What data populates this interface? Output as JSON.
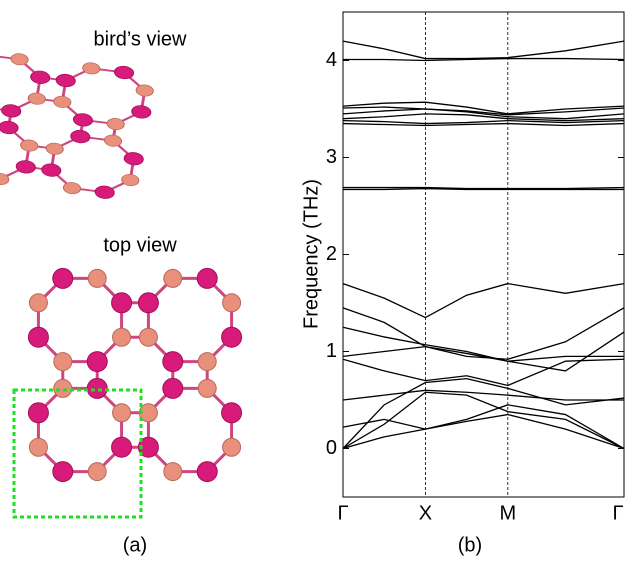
{
  "structure": {
    "bird_view_label": "bird’s view",
    "top_view_label": "top view",
    "caption": "(a)"
  },
  "chart_data": {
    "type": "line",
    "ylabel": "Frequency (THz)",
    "caption": "(b)",
    "x": [
      0,
      0.5,
      1,
      1.5,
      2,
      2.7,
      3.41
    ],
    "xlim": [
      0,
      3.41
    ],
    "xticks": [
      {
        "value": 0,
        "label": "Γ"
      },
      {
        "value": 1,
        "label": "X"
      },
      {
        "value": 2,
        "label": "M"
      },
      {
        "value": 3.41,
        "label": "Γ"
      }
    ],
    "ylim": [
      -0.5,
      4.5
    ],
    "yticks": [
      0,
      1,
      2,
      3,
      4
    ],
    "color": "#000000",
    "series": [
      {
        "values": [
          4.2,
          4.12,
          4.02,
          4.02,
          4.03,
          4.1,
          4.2
        ]
      },
      {
        "values": [
          4.01,
          4.01,
          4.0,
          4.01,
          4.02,
          4.02,
          4.01
        ]
      },
      {
        "values": [
          3.53,
          3.56,
          3.57,
          3.52,
          3.45,
          3.5,
          3.53
        ]
      },
      {
        "values": [
          3.51,
          3.52,
          3.5,
          3.48,
          3.44,
          3.47,
          3.51
        ]
      },
      {
        "values": [
          3.45,
          3.48,
          3.5,
          3.47,
          3.42,
          3.4,
          3.45
        ]
      },
      {
        "values": [
          3.4,
          3.42,
          3.45,
          3.44,
          3.4,
          3.38,
          3.4
        ]
      },
      {
        "values": [
          3.38,
          3.37,
          3.35,
          3.36,
          3.38,
          3.36,
          3.38
        ]
      },
      {
        "values": [
          3.35,
          3.34,
          3.33,
          3.34,
          3.35,
          3.33,
          3.35
        ]
      },
      {
        "values": [
          2.69,
          2.69,
          2.69,
          2.68,
          2.68,
          2.68,
          2.69
        ]
      },
      {
        "values": [
          2.67,
          2.67,
          2.68,
          2.67,
          2.67,
          2.67,
          2.67
        ]
      },
      {
        "values": [
          1.7,
          1.55,
          1.35,
          1.58,
          1.7,
          1.6,
          1.7
        ]
      },
      {
        "values": [
          1.45,
          1.3,
          1.05,
          0.95,
          0.92,
          1.1,
          1.45
        ]
      },
      {
        "values": [
          1.25,
          1.15,
          1.07,
          1.0,
          0.9,
          0.8,
          1.2
        ]
      },
      {
        "values": [
          0.95,
          1.0,
          1.05,
          0.98,
          0.9,
          0.95,
          0.95
        ]
      },
      {
        "values": [
          0.92,
          0.8,
          0.7,
          0.75,
          0.65,
          0.9,
          0.92
        ]
      },
      {
        "values": [
          0.5,
          0.55,
          0.6,
          0.58,
          0.55,
          0.5,
          0.5
        ]
      },
      {
        "values": [
          0,
          0.45,
          0.68,
          0.72,
          0.62,
          0.45,
          0.52
        ]
      },
      {
        "values": [
          0,
          0.25,
          0.58,
          0.55,
          0.38,
          0.3,
          0
        ]
      },
      {
        "values": [
          0,
          0.12,
          0.2,
          0.28,
          0.35,
          0.2,
          0
        ]
      },
      {
        "values": [
          0.22,
          0.3,
          0.2,
          0.3,
          0.45,
          0.35,
          0
        ]
      }
    ]
  }
}
